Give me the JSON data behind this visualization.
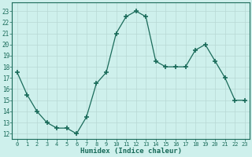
{
  "x": [
    0,
    1,
    2,
    3,
    4,
    5,
    6,
    7,
    8,
    9,
    10,
    11,
    12,
    13,
    14,
    15,
    16,
    17,
    18,
    19,
    20,
    21,
    22,
    23
  ],
  "y": [
    17.5,
    15.5,
    14.0,
    13.0,
    12.5,
    12.5,
    12.0,
    13.5,
    16.5,
    17.5,
    21.0,
    22.5,
    23.0,
    22.5,
    18.5,
    18.0,
    18.0,
    18.0,
    19.5,
    20.0,
    18.5,
    17.0,
    15.0,
    15.0
  ],
  "line_color": "#1a6b5a",
  "marker": "+",
  "marker_size": 4,
  "bg_color": "#cef0ec",
  "grid_color": "#b8d8d4",
  "xlabel": "Humidex (Indice chaleur)",
  "ylabel_ticks": [
    12,
    13,
    14,
    15,
    16,
    17,
    18,
    19,
    20,
    21,
    22,
    23
  ],
  "xtick_labels": [
    "0",
    "1",
    "2",
    "3",
    "4",
    "5",
    "6",
    "7",
    "8",
    "9",
    "10",
    "11",
    "12",
    "13",
    "14",
    "15",
    "16",
    "17",
    "18",
    "19",
    "20",
    "21",
    "22",
    "23"
  ],
  "ylim": [
    11.5,
    23.8
  ],
  "xlim": [
    -0.5,
    23.5
  ],
  "font_family": "monospace"
}
